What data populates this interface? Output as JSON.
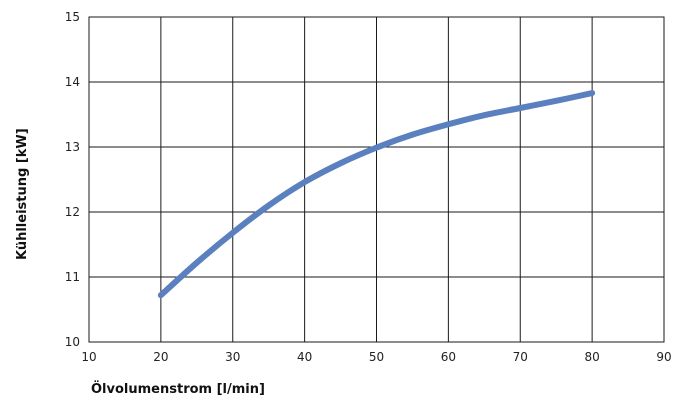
{
  "chart_data": {
    "type": "line",
    "title": "",
    "xlabel": "Ölvolumenstrom [l/min]",
    "ylabel": "Kühlleistung  [kW]",
    "xlim": [
      10,
      90
    ],
    "ylim": [
      10,
      15
    ],
    "xticks": [
      "10",
      "20",
      "30",
      "40",
      "50",
      "60",
      "70",
      "80",
      "90"
    ],
    "yticks": [
      "10",
      "11",
      "12",
      "13",
      "14",
      "15"
    ],
    "grid": true,
    "line_color": "#5b80c0",
    "series": [
      {
        "x": [
          20,
          25,
          30,
          35,
          40,
          45,
          50,
          55,
          60,
          65,
          70,
          75,
          80
        ],
        "values": [
          10.72,
          11.22,
          11.68,
          12.1,
          12.46,
          12.75,
          12.99,
          13.19,
          13.35,
          13.49,
          13.6,
          13.71,
          13.83
        ]
      }
    ]
  }
}
